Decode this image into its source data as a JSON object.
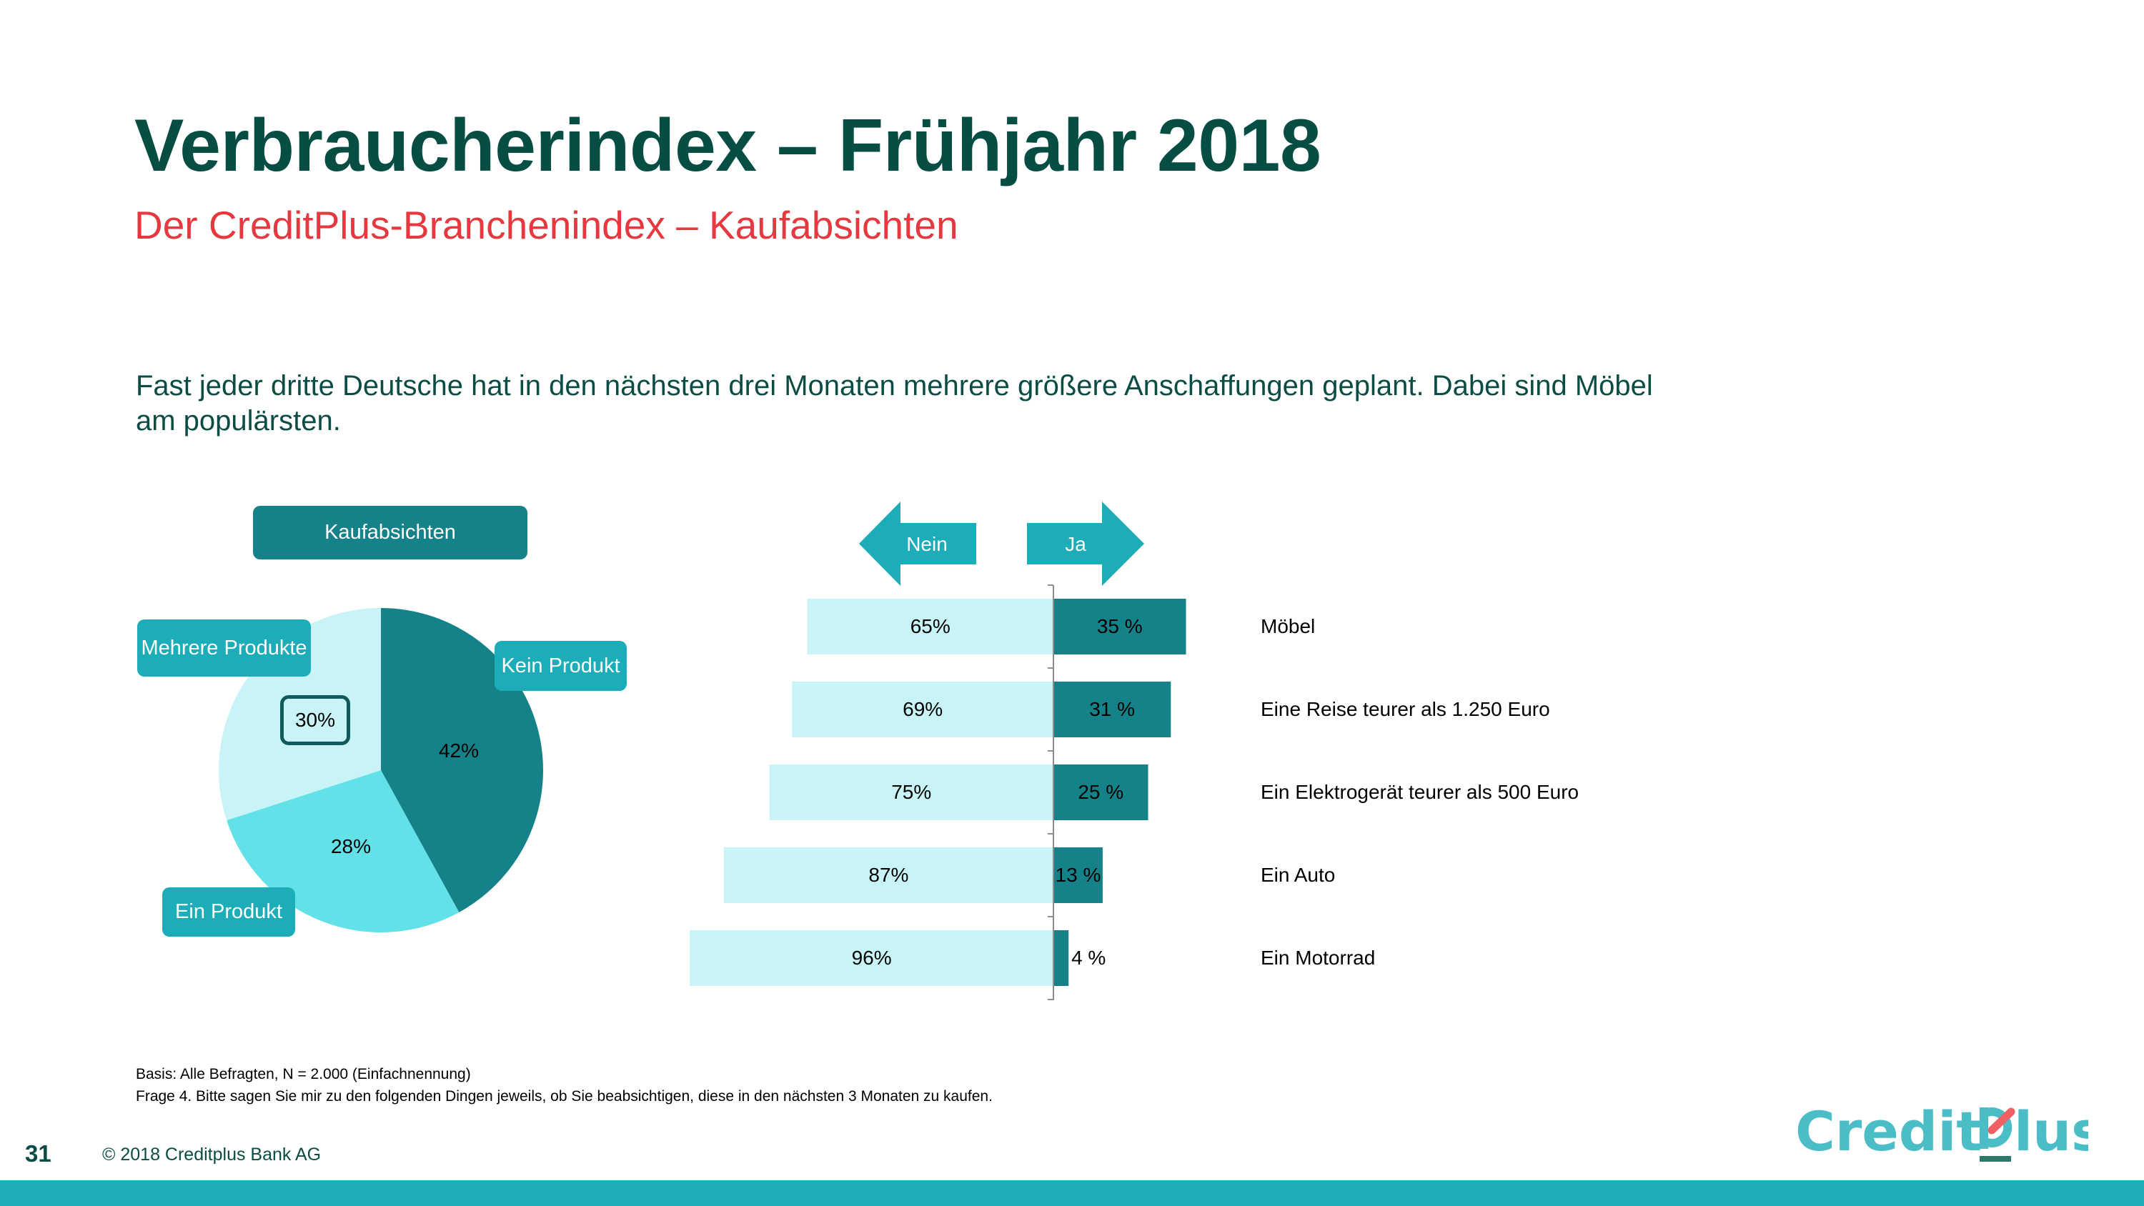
{
  "header": {
    "title": "Verbraucherindex – Frühjahr 2018",
    "subtitle": "Der CreditPlus-Branchenindex – Kaufabsichten"
  },
  "intro_text": "Fast jeder dritte Deutsche hat in den nächsten drei Monaten mehrere größere Anschaffungen geplant. Dabei sind Möbel am populärsten.",
  "colors": {
    "title": "#064d43",
    "subtitle": "#e5393f",
    "dark_teal": "#148288",
    "medium_teal": "#62e1e8",
    "light_teal": "#c8f4f7",
    "callout": "#1cadb8"
  },
  "chart_data": [
    {
      "type": "pie",
      "title": "Kaufabsichten",
      "start": "top",
      "direction": "clockwise",
      "slices": [
        {
          "label": "Kein Produkt",
          "value": 42,
          "value_label": "42%",
          "color": "#148288"
        },
        {
          "label": "Ein Produkt",
          "value": 28,
          "value_label": "28%",
          "color": "#62e1e8"
        },
        {
          "label": "Mehrere Produkte",
          "value": 30,
          "value_label": "30%",
          "color": "#c8f4f7",
          "highlighted": true
        }
      ]
    },
    {
      "type": "bar",
      "orientation": "horizontal-diverging",
      "legend": {
        "left": "Nein",
        "right": "Ja"
      },
      "categories": [
        "Möbel",
        "Eine Reise teurer als 1.250 Euro",
        "Ein Elektrogerät teurer als 500 Euro",
        "Ein Auto",
        "Ein Motorrad"
      ],
      "series": [
        {
          "name": "Nein",
          "values": [
            65,
            69,
            75,
            87,
            96
          ],
          "labels": [
            "65%",
            "69%",
            "75%",
            "87%",
            "96%"
          ],
          "color": "#c8f4f7"
        },
        {
          "name": "Ja",
          "values": [
            35,
            31,
            25,
            13,
            4
          ],
          "labels": [
            "35 %",
            "31 %",
            "25 %",
            "13 %",
            "4 %"
          ],
          "color": "#148288"
        }
      ],
      "xlim": [
        -100,
        100
      ]
    }
  ],
  "footnotes": {
    "basis": "Basis: Alle Befragten, N = 2.000 (Einfachnennung)",
    "question": "Frage 4. Bitte sagen Sie mir zu den folgenden Dingen jeweils, ob Sie beabsichtigen, diese in den nächsten 3 Monaten zu kaufen."
  },
  "footer": {
    "page_number": "31",
    "copyright": "© 2018 Creditplus Bank AG",
    "logo_text_left": "Credit",
    "logo_text_right": "lus"
  }
}
